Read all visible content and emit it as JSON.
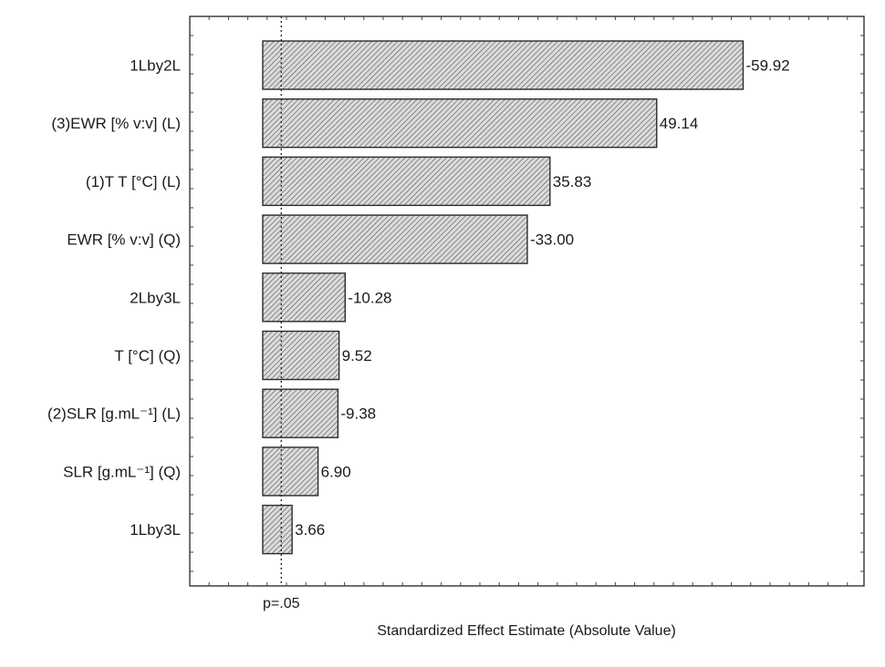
{
  "chart_data": {
    "type": "bar",
    "orientation": "horizontal",
    "title": "",
    "xlabel": "Standardized Effect Estimate (Absolute Value)",
    "ylabel": "",
    "categories": [
      "1Lby2L",
      "(3)EWR [% v:v] (L)",
      "(1)T T [°C] (L)",
      "EWR [% v:v] (Q)",
      "2Lby3L",
      "T [°C] (Q)",
      "(2)SLR [g.mL⁻¹] (L)",
      "SLR [g.mL⁻¹] (Q)",
      "1Lby3L"
    ],
    "values": [
      59.92,
      49.14,
      35.83,
      33.0,
      10.28,
      9.52,
      9.38,
      6.9,
      3.66
    ],
    "value_labels": [
      "-59.92",
      "49.14",
      "35.83",
      "-33.00",
      "-10.28",
      "9.52",
      "-9.38",
      "6.90",
      "3.66"
    ],
    "reference_line": {
      "value": 2.31,
      "label": "p=.05",
      "style": "dotted"
    },
    "xlim": [
      -9.1,
      75
    ],
    "x_tick_labels_shown": false,
    "grid": false,
    "bar_fill": "diagonal-hatch",
    "colors": {
      "bar_fill": "#d9d9d9",
      "hatch": "#555555",
      "edge": "#2b2b2b",
      "frame": "#333333"
    }
  }
}
